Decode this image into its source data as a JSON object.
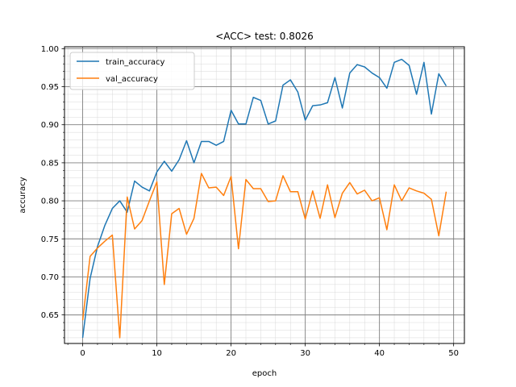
{
  "chart_data": {
    "type": "line",
    "title": "<ACC> test: 0.8026",
    "xlabel": "epoch",
    "ylabel": "accuracy",
    "xlim": [
      -2.45,
      51.45
    ],
    "ylim": [
      0.6125,
      1.0025
    ],
    "xticks": [
      0,
      10,
      20,
      30,
      40,
      50
    ],
    "yticks": [
      0.65,
      0.7,
      0.75,
      0.8,
      0.85,
      0.9,
      0.95,
      1.0
    ],
    "grid": true,
    "legend_position": "upper left",
    "x": [
      0,
      1,
      2,
      3,
      4,
      5,
      6,
      7,
      8,
      9,
      10,
      11,
      12,
      13,
      14,
      15,
      16,
      17,
      18,
      19,
      20,
      21,
      22,
      23,
      24,
      25,
      26,
      27,
      28,
      29,
      30,
      31,
      32,
      33,
      34,
      35,
      36,
      37,
      38,
      39,
      40,
      41,
      42,
      43,
      44,
      45,
      46,
      47,
      48,
      49
    ],
    "series": [
      {
        "name": "train_accuracy",
        "color": "#1f77b4",
        "values": [
          0.62,
          0.698,
          0.74,
          0.768,
          0.79,
          0.8,
          0.785,
          0.826,
          0.818,
          0.813,
          0.838,
          0.852,
          0.839,
          0.854,
          0.879,
          0.85,
          0.878,
          0.878,
          0.873,
          0.878,
          0.919,
          0.901,
          0.901,
          0.936,
          0.932,
          0.901,
          0.905,
          0.952,
          0.959,
          0.943,
          0.906,
          0.925,
          0.926,
          0.929,
          0.962,
          0.922,
          0.968,
          0.979,
          0.976,
          0.968,
          0.962,
          0.948,
          0.982,
          0.986,
          0.978,
          0.94,
          0.982,
          0.914,
          0.967,
          0.951
        ]
      },
      {
        "name": "val_accuracy",
        "color": "#ff7f0e",
        "values": [
          0.643,
          0.727,
          0.738,
          0.747,
          0.755,
          0.62,
          0.805,
          0.763,
          0.774,
          0.8,
          0.825,
          0.69,
          0.783,
          0.79,
          0.756,
          0.777,
          0.836,
          0.817,
          0.818,
          0.807,
          0.832,
          0.737,
          0.828,
          0.816,
          0.816,
          0.799,
          0.8,
          0.833,
          0.812,
          0.812,
          0.776,
          0.813,
          0.777,
          0.821,
          0.778,
          0.81,
          0.824,
          0.809,
          0.814,
          0.8,
          0.804,
          0.762,
          0.821,
          0.8,
          0.817,
          0.813,
          0.81,
          0.802,
          0.754,
          0.812
        ]
      }
    ]
  }
}
